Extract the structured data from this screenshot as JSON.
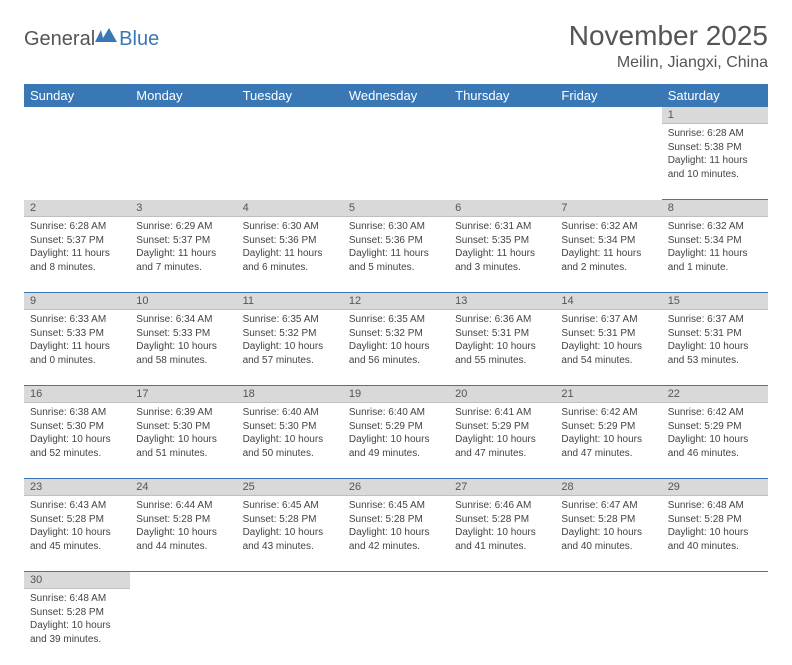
{
  "logo": {
    "text1": "General",
    "text2": "Blue"
  },
  "title": "November 2025",
  "location": "Meilin, Jiangxi, China",
  "colors": {
    "header_bg": "#3a78b5",
    "header_text": "#ffffff",
    "daynum_bg": "#d9d9d9",
    "row_border": "#3a78b5",
    "body_text": "#444444",
    "title_text": "#555555"
  },
  "day_headers": [
    "Sunday",
    "Monday",
    "Tuesday",
    "Wednesday",
    "Thursday",
    "Friday",
    "Saturday"
  ],
  "weeks": [
    {
      "nums": [
        "",
        "",
        "",
        "",
        "",
        "",
        "1"
      ],
      "info": [
        "",
        "",
        "",
        "",
        "",
        "",
        "Sunrise: 6:28 AM\nSunset: 5:38 PM\nDaylight: 11 hours and 10 minutes."
      ]
    },
    {
      "nums": [
        "2",
        "3",
        "4",
        "5",
        "6",
        "7",
        "8"
      ],
      "info": [
        "Sunrise: 6:28 AM\nSunset: 5:37 PM\nDaylight: 11 hours and 8 minutes.",
        "Sunrise: 6:29 AM\nSunset: 5:37 PM\nDaylight: 11 hours and 7 minutes.",
        "Sunrise: 6:30 AM\nSunset: 5:36 PM\nDaylight: 11 hours and 6 minutes.",
        "Sunrise: 6:30 AM\nSunset: 5:36 PM\nDaylight: 11 hours and 5 minutes.",
        "Sunrise: 6:31 AM\nSunset: 5:35 PM\nDaylight: 11 hours and 3 minutes.",
        "Sunrise: 6:32 AM\nSunset: 5:34 PM\nDaylight: 11 hours and 2 minutes.",
        "Sunrise: 6:32 AM\nSunset: 5:34 PM\nDaylight: 11 hours and 1 minute."
      ]
    },
    {
      "nums": [
        "9",
        "10",
        "11",
        "12",
        "13",
        "14",
        "15"
      ],
      "info": [
        "Sunrise: 6:33 AM\nSunset: 5:33 PM\nDaylight: 11 hours and 0 minutes.",
        "Sunrise: 6:34 AM\nSunset: 5:33 PM\nDaylight: 10 hours and 58 minutes.",
        "Sunrise: 6:35 AM\nSunset: 5:32 PM\nDaylight: 10 hours and 57 minutes.",
        "Sunrise: 6:35 AM\nSunset: 5:32 PM\nDaylight: 10 hours and 56 minutes.",
        "Sunrise: 6:36 AM\nSunset: 5:31 PM\nDaylight: 10 hours and 55 minutes.",
        "Sunrise: 6:37 AM\nSunset: 5:31 PM\nDaylight: 10 hours and 54 minutes.",
        "Sunrise: 6:37 AM\nSunset: 5:31 PM\nDaylight: 10 hours and 53 minutes."
      ]
    },
    {
      "nums": [
        "16",
        "17",
        "18",
        "19",
        "20",
        "21",
        "22"
      ],
      "info": [
        "Sunrise: 6:38 AM\nSunset: 5:30 PM\nDaylight: 10 hours and 52 minutes.",
        "Sunrise: 6:39 AM\nSunset: 5:30 PM\nDaylight: 10 hours and 51 minutes.",
        "Sunrise: 6:40 AM\nSunset: 5:30 PM\nDaylight: 10 hours and 50 minutes.",
        "Sunrise: 6:40 AM\nSunset: 5:29 PM\nDaylight: 10 hours and 49 minutes.",
        "Sunrise: 6:41 AM\nSunset: 5:29 PM\nDaylight: 10 hours and 47 minutes.",
        "Sunrise: 6:42 AM\nSunset: 5:29 PM\nDaylight: 10 hours and 47 minutes.",
        "Sunrise: 6:42 AM\nSunset: 5:29 PM\nDaylight: 10 hours and 46 minutes."
      ]
    },
    {
      "nums": [
        "23",
        "24",
        "25",
        "26",
        "27",
        "28",
        "29"
      ],
      "info": [
        "Sunrise: 6:43 AM\nSunset: 5:28 PM\nDaylight: 10 hours and 45 minutes.",
        "Sunrise: 6:44 AM\nSunset: 5:28 PM\nDaylight: 10 hours and 44 minutes.",
        "Sunrise: 6:45 AM\nSunset: 5:28 PM\nDaylight: 10 hours and 43 minutes.",
        "Sunrise: 6:45 AM\nSunset: 5:28 PM\nDaylight: 10 hours and 42 minutes.",
        "Sunrise: 6:46 AM\nSunset: 5:28 PM\nDaylight: 10 hours and 41 minutes.",
        "Sunrise: 6:47 AM\nSunset: 5:28 PM\nDaylight: 10 hours and 40 minutes.",
        "Sunrise: 6:48 AM\nSunset: 5:28 PM\nDaylight: 10 hours and 40 minutes."
      ]
    },
    {
      "nums": [
        "30",
        "",
        "",
        "",
        "",
        "",
        ""
      ],
      "info": [
        "Sunrise: 6:48 AM\nSunset: 5:28 PM\nDaylight: 10 hours and 39 minutes.",
        "",
        "",
        "",
        "",
        "",
        ""
      ]
    }
  ]
}
